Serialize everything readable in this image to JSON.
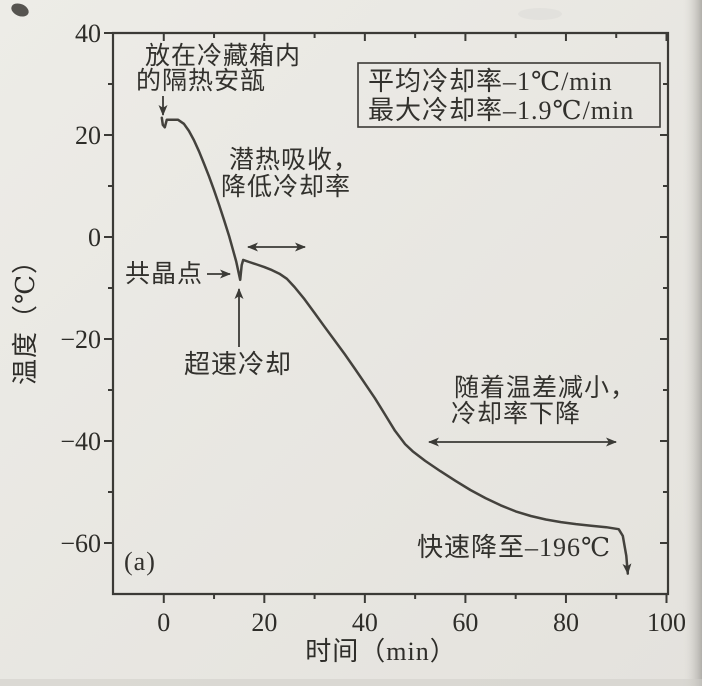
{
  "figure": {
    "panel_label": "(a)",
    "colors": {
      "background": "#ebe9e4",
      "ink": "#3b3a36",
      "curve": "#44423d",
      "edge_shadow": "#b7b5b0"
    }
  },
  "chart_data": {
    "type": "line",
    "title": "",
    "xlabel": "时间（min）",
    "ylabel": "温度（℃）",
    "xlim": [
      -10.1,
      100.3
    ],
    "ylim": [
      -70,
      40
    ],
    "grid": false,
    "legend": null,
    "x_ticks": {
      "major": [
        0,
        20,
        40,
        60,
        80,
        100
      ],
      "minor": [
        10,
        30,
        50,
        70,
        90
      ],
      "labels": [
        "0",
        "20",
        "40",
        "60",
        "80",
        "100"
      ]
    },
    "y_ticks": {
      "major": [
        40,
        20,
        0,
        -20,
        -40,
        -60
      ],
      "minor": [
        30,
        10,
        -10,
        -30,
        -50
      ],
      "labels": [
        "40",
        "20",
        "0",
        "−20",
        "−40",
        "−60"
      ]
    },
    "series": [
      {
        "name": "cooling-curve",
        "end_arrow": true,
        "points": [
          [
            -0.4,
            23.4
          ],
          [
            -0.2,
            22.0
          ],
          [
            0.2,
            21.5
          ],
          [
            0.6,
            23.0
          ],
          [
            2.8,
            23.0
          ],
          [
            4,
            22.2
          ],
          [
            5,
            20.8
          ],
          [
            6,
            19.0
          ],
          [
            7,
            16.8
          ],
          [
            8,
            14.4
          ],
          [
            9,
            11.9
          ],
          [
            10,
            9.2
          ],
          [
            11,
            6.3
          ],
          [
            12,
            3.3
          ],
          [
            13,
            0.2
          ],
          [
            13.8,
            -2.6
          ],
          [
            14.4,
            -4.8
          ],
          [
            15.0,
            -7.5
          ],
          [
            15.2,
            -8.4
          ],
          [
            15.5,
            -5.5
          ],
          [
            15.8,
            -4.5
          ],
          [
            17,
            -4.9
          ],
          [
            18.5,
            -5.4
          ],
          [
            20,
            -5.9
          ],
          [
            21.5,
            -6.5
          ],
          [
            23,
            -7.2
          ],
          [
            24.5,
            -8.2
          ],
          [
            26,
            -9.8
          ],
          [
            28,
            -12.2
          ],
          [
            30,
            -14.9
          ],
          [
            32,
            -17.6
          ],
          [
            34,
            -20.3
          ],
          [
            36,
            -23.0
          ],
          [
            38,
            -25.8
          ],
          [
            40,
            -28.7
          ],
          [
            42,
            -31.6
          ],
          [
            44,
            -34.8
          ],
          [
            46,
            -38.0
          ],
          [
            48,
            -40.6
          ],
          [
            49.5,
            -42.0
          ],
          [
            52,
            -43.9
          ],
          [
            55,
            -45.9
          ],
          [
            58,
            -47.8
          ],
          [
            61,
            -49.6
          ],
          [
            64,
            -51.2
          ],
          [
            67,
            -52.6
          ],
          [
            70,
            -53.8
          ],
          [
            73,
            -54.7
          ],
          [
            76,
            -55.4
          ],
          [
            79,
            -55.9
          ],
          [
            82,
            -56.3
          ],
          [
            85,
            -56.6
          ],
          [
            88,
            -56.9
          ],
          [
            90.5,
            -57.3
          ],
          [
            91.3,
            -58.6
          ],
          [
            92.0,
            -62.5
          ],
          [
            92.3,
            -66.0
          ]
        ]
      }
    ],
    "stats_box": {
      "lines": [
        "平均冷却率–1℃/min",
        "最大冷却率–1.9℃/min"
      ]
    },
    "annotations": {
      "ampoule": {
        "lines": [
          "放在冷藏箱内",
          "的隔热安瓿"
        ]
      },
      "latent": {
        "lines": [
          "潜热吸收，",
          "降低冷却率"
        ]
      },
      "eutectic": {
        "label": "共晶点"
      },
      "supercool": {
        "label": "超速冷却"
      },
      "tempdiff": {
        "lines": [
          "随着温差减小，",
          "冷却率下降"
        ]
      },
      "plunge": {
        "label": "快速降至–196℃"
      }
    }
  }
}
